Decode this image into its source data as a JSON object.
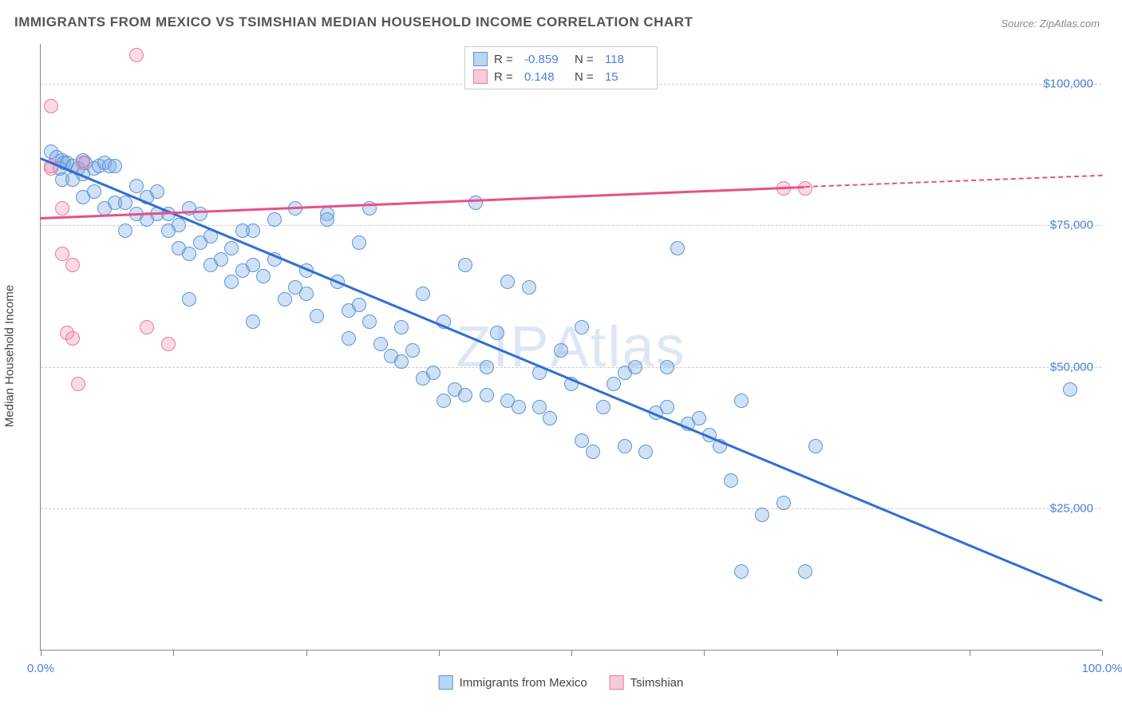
{
  "title": "IMMIGRANTS FROM MEXICO VS TSIMSHIAN MEDIAN HOUSEHOLD INCOME CORRELATION CHART",
  "source": "Source: ZipAtlas.com",
  "y_axis_label": "Median Household Income",
  "watermark": "ZIPAtlas",
  "chart": {
    "type": "scatter",
    "xlim": [
      0,
      100
    ],
    "ylim": [
      0,
      107000
    ],
    "x_tick_positions": [
      0,
      12.5,
      25,
      37.5,
      50,
      62.5,
      75,
      87.5,
      100
    ],
    "x_tick_labels": {
      "0": "0.0%",
      "100": "100.0%"
    },
    "y_ticks": [
      25000,
      50000,
      75000,
      100000
    ],
    "y_tick_labels": [
      "$25,000",
      "$50,000",
      "$75,000",
      "$100,000"
    ],
    "grid_color": "#cccccc",
    "axis_color": "#888888",
    "background_color": "#ffffff",
    "marker_radius": 9,
    "marker_stroke_width": 1.5,
    "trend_line_width": 2.5
  },
  "series": [
    {
      "name": "Immigrants from Mexico",
      "fill_color": "rgba(120,170,230,0.35)",
      "stroke_color": "#5b95d8",
      "trend_color": "#2f6fd0",
      "R": "-0.859",
      "N": "118",
      "trend": {
        "x1": 0,
        "y1": 87000,
        "x2": 100,
        "y2": 9000
      },
      "points": [
        [
          1,
          88000
        ],
        [
          1.5,
          87000
        ],
        [
          2,
          86500
        ],
        [
          2.2,
          86000
        ],
        [
          2.5,
          86000
        ],
        [
          1.8,
          85000
        ],
        [
          3,
          85500
        ],
        [
          3.5,
          85000
        ],
        [
          4,
          86500
        ],
        [
          4.2,
          86000
        ],
        [
          2,
          83000
        ],
        [
          3,
          83000
        ],
        [
          4,
          84000
        ],
        [
          5,
          85000
        ],
        [
          5.5,
          85500
        ],
        [
          6,
          86000
        ],
        [
          6.5,
          85500
        ],
        [
          7,
          85500
        ],
        [
          4,
          80000
        ],
        [
          5,
          81000
        ],
        [
          6,
          78000
        ],
        [
          7,
          79000
        ],
        [
          8,
          79000
        ],
        [
          9,
          77000
        ],
        [
          10,
          80000
        ],
        [
          10,
          76000
        ],
        [
          11,
          77000
        ],
        [
          12,
          77000
        ],
        [
          12,
          74000
        ],
        [
          13,
          75000
        ],
        [
          13,
          71000
        ],
        [
          14,
          78000
        ],
        [
          15,
          77000
        ],
        [
          15,
          72000
        ],
        [
          16,
          73000
        ],
        [
          17,
          69000
        ],
        [
          18,
          71000
        ],
        [
          18,
          65000
        ],
        [
          19,
          67000
        ],
        [
          20,
          74000
        ],
        [
          20,
          68000
        ],
        [
          21,
          66000
        ],
        [
          22,
          76000
        ],
        [
          23,
          62000
        ],
        [
          24,
          78000
        ],
        [
          25,
          63000
        ],
        [
          25,
          67000
        ],
        [
          26,
          59000
        ],
        [
          27,
          77000
        ],
        [
          28,
          65000
        ],
        [
          29,
          60000
        ],
        [
          29,
          55000
        ],
        [
          30,
          61000
        ],
        [
          31,
          78000
        ],
        [
          31,
          58000
        ],
        [
          32,
          54000
        ],
        [
          33,
          52000
        ],
        [
          34,
          57000
        ],
        [
          35,
          53000
        ],
        [
          36,
          63000
        ],
        [
          37,
          49000
        ],
        [
          38,
          44000
        ],
        [
          38,
          58000
        ],
        [
          39,
          46000
        ],
        [
          40,
          68000
        ],
        [
          40,
          45000
        ],
        [
          41,
          79000
        ],
        [
          42,
          50000
        ],
        [
          42,
          45000
        ],
        [
          43,
          56000
        ],
        [
          44,
          65000
        ],
        [
          44,
          44000
        ],
        [
          45,
          43000
        ],
        [
          46,
          64000
        ],
        [
          47,
          49000
        ],
        [
          47,
          43000
        ],
        [
          48,
          41000
        ],
        [
          49,
          53000
        ],
        [
          50,
          47000
        ],
        [
          51,
          37000
        ],
        [
          51,
          57000
        ],
        [
          52,
          35000
        ],
        [
          53,
          43000
        ],
        [
          54,
          47000
        ],
        [
          55,
          49000
        ],
        [
          55,
          36000
        ],
        [
          56,
          50000
        ],
        [
          57,
          35000
        ],
        [
          58,
          42000
        ],
        [
          59,
          50000
        ],
        [
          59,
          43000
        ],
        [
          60,
          71000
        ],
        [
          61,
          40000
        ],
        [
          62,
          41000
        ],
        [
          63,
          38000
        ],
        [
          64,
          36000
        ],
        [
          65,
          30000
        ],
        [
          66,
          44000
        ],
        [
          66,
          14000
        ],
        [
          68,
          24000
        ],
        [
          70,
          26000
        ],
        [
          72,
          14000
        ],
        [
          73,
          36000
        ],
        [
          97,
          46000
        ],
        [
          8,
          74000
        ],
        [
          9,
          82000
        ],
        [
          11,
          81000
        ],
        [
          14,
          70000
        ],
        [
          16,
          68000
        ],
        [
          19,
          74000
        ],
        [
          22,
          69000
        ],
        [
          24,
          64000
        ],
        [
          14,
          62000
        ],
        [
          27,
          76000
        ],
        [
          30,
          72000
        ],
        [
          34,
          51000
        ],
        [
          36,
          48000
        ],
        [
          20,
          58000
        ]
      ]
    },
    {
      "name": "Tsimshian",
      "fill_color": "rgba(240,150,180,0.35)",
      "stroke_color": "#e57ba3",
      "trend_color": "#e84f8a",
      "R": "0.148",
      "N": "15",
      "trend": {
        "x1": 0,
        "y1": 76500,
        "x2": 72,
        "y2": 82000
      },
      "trend_dash": {
        "x1": 72,
        "y1": 82000,
        "x2": 100,
        "y2": 84000
      },
      "points": [
        [
          1,
          96000
        ],
        [
          1,
          85500
        ],
        [
          1,
          85000
        ],
        [
          2,
          78000
        ],
        [
          2,
          70000
        ],
        [
          2.5,
          56000
        ],
        [
          3,
          68000
        ],
        [
          3,
          55000
        ],
        [
          3.5,
          47000
        ],
        [
          4,
          86000
        ],
        [
          9,
          105000
        ],
        [
          10,
          57000
        ],
        [
          12,
          54000
        ],
        [
          70,
          81500
        ],
        [
          72,
          81500
        ]
      ]
    }
  ],
  "legend_top": {
    "rows": [
      {
        "swatch_fill": "rgba(120,170,230,0.5)",
        "swatch_stroke": "#5b95d8",
        "R_label": "R =",
        "R_val": "-0.859",
        "N_label": "N =",
        "N_val": "118"
      },
      {
        "swatch_fill": "rgba(240,150,180,0.5)",
        "swatch_stroke": "#e57ba3",
        "R_label": "R =",
        "R_val": "0.148",
        "N_label": "N =",
        "N_val": "15"
      }
    ]
  },
  "legend_bottom": {
    "items": [
      {
        "swatch_fill": "rgba(120,170,230,0.5)",
        "swatch_stroke": "#5b95d8",
        "label": "Immigrants from Mexico"
      },
      {
        "swatch_fill": "rgba(240,150,180,0.5)",
        "swatch_stroke": "#e57ba3",
        "label": "Tsimshian"
      }
    ]
  }
}
